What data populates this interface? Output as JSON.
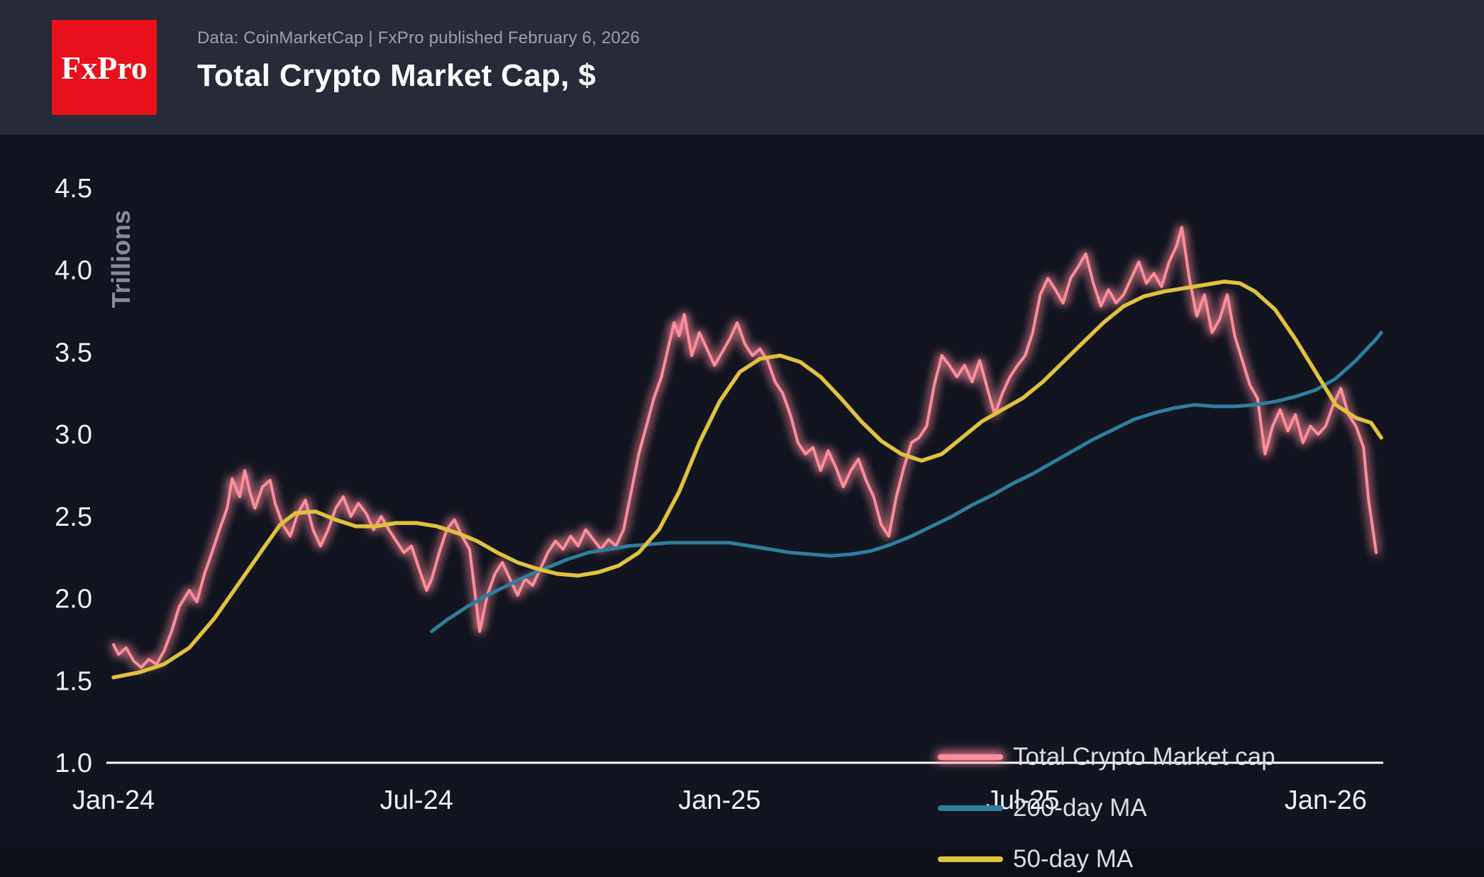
{
  "header": {
    "logo_text": "FxPro",
    "source_line": "Data: CoinMarketCap | FxPro published February 6, 2026",
    "title": "Total Crypto Market Cap, $"
  },
  "colors": {
    "header_bg": "#272b37",
    "chart_bg": "#121520",
    "logo_red": "#e8101c",
    "axis_line": "#ffffff",
    "axis_text": "#eef0f3",
    "muted_text": "#9aa1ae"
  },
  "chart_data": {
    "type": "line",
    "title": "Total Crypto Market Cap, $",
    "ylabel": "Trillions",
    "unit": "trillions USD",
    "ylim": [
      1.0,
      4.5
    ],
    "xlim_months_from_jan24": [
      0,
      25.1
    ],
    "grid": "off",
    "legend_position": "lower right",
    "y_ticks": [
      {
        "label": "1.0",
        "v": 1.0
      },
      {
        "label": "1.5",
        "v": 1.5
      },
      {
        "label": "2.0",
        "v": 2.0
      },
      {
        "label": "2.5",
        "v": 2.5
      },
      {
        "label": "3.0",
        "v": 3.0
      },
      {
        "label": "3.5",
        "v": 3.5
      },
      {
        "label": "4.0",
        "v": 4.0
      },
      {
        "label": "4.5",
        "v": 4.5
      }
    ],
    "x_ticks": [
      {
        "label": "Jan-24",
        "m": 0
      },
      {
        "label": "Jul-24",
        "m": 6
      },
      {
        "label": "Jan-25",
        "m": 12
      },
      {
        "label": "Jul-25",
        "m": 18
      },
      {
        "label": "Jan-26",
        "m": 24
      }
    ],
    "series": [
      {
        "id": "total-crypto-market-cap",
        "name": "Total Crypto Market cap",
        "color": "#ff8d9c",
        "width": 4,
        "glow": true,
        "points": [
          [
            0.0,
            1.72
          ],
          [
            0.1,
            1.66
          ],
          [
            0.25,
            1.7
          ],
          [
            0.4,
            1.62
          ],
          [
            0.55,
            1.58
          ],
          [
            0.7,
            1.63
          ],
          [
            0.85,
            1.6
          ],
          [
            1.0,
            1.68
          ],
          [
            1.15,
            1.8
          ],
          [
            1.3,
            1.95
          ],
          [
            1.5,
            2.05
          ],
          [
            1.65,
            1.98
          ],
          [
            1.8,
            2.15
          ],
          [
            1.95,
            2.28
          ],
          [
            2.1,
            2.42
          ],
          [
            2.25,
            2.55
          ],
          [
            2.35,
            2.73
          ],
          [
            2.5,
            2.62
          ],
          [
            2.6,
            2.78
          ],
          [
            2.7,
            2.65
          ],
          [
            2.8,
            2.55
          ],
          [
            2.95,
            2.68
          ],
          [
            3.1,
            2.72
          ],
          [
            3.2,
            2.58
          ],
          [
            3.35,
            2.45
          ],
          [
            3.5,
            2.38
          ],
          [
            3.65,
            2.52
          ],
          [
            3.8,
            2.6
          ],
          [
            3.95,
            2.42
          ],
          [
            4.1,
            2.32
          ],
          [
            4.25,
            2.42
          ],
          [
            4.4,
            2.55
          ],
          [
            4.55,
            2.62
          ],
          [
            4.7,
            2.5
          ],
          [
            4.85,
            2.58
          ],
          [
            5.0,
            2.52
          ],
          [
            5.15,
            2.42
          ],
          [
            5.3,
            2.5
          ],
          [
            5.45,
            2.42
          ],
          [
            5.6,
            2.35
          ],
          [
            5.75,
            2.28
          ],
          [
            5.9,
            2.32
          ],
          [
            6.05,
            2.18
          ],
          [
            6.2,
            2.05
          ],
          [
            6.3,
            2.12
          ],
          [
            6.45,
            2.28
          ],
          [
            6.6,
            2.42
          ],
          [
            6.75,
            2.48
          ],
          [
            6.9,
            2.38
          ],
          [
            7.05,
            2.3
          ],
          [
            7.15,
            2.05
          ],
          [
            7.25,
            1.8
          ],
          [
            7.4,
            2.02
          ],
          [
            7.55,
            2.15
          ],
          [
            7.7,
            2.22
          ],
          [
            7.85,
            2.12
          ],
          [
            8.0,
            2.02
          ],
          [
            8.15,
            2.12
          ],
          [
            8.3,
            2.08
          ],
          [
            8.45,
            2.18
          ],
          [
            8.6,
            2.28
          ],
          [
            8.75,
            2.35
          ],
          [
            8.9,
            2.3
          ],
          [
            9.05,
            2.38
          ],
          [
            9.2,
            2.32
          ],
          [
            9.35,
            2.42
          ],
          [
            9.5,
            2.36
          ],
          [
            9.65,
            2.3
          ],
          [
            9.8,
            2.36
          ],
          [
            9.95,
            2.32
          ],
          [
            10.1,
            2.42
          ],
          [
            10.25,
            2.65
          ],
          [
            10.4,
            2.88
          ],
          [
            10.55,
            3.05
          ],
          [
            10.7,
            3.22
          ],
          [
            10.85,
            3.35
          ],
          [
            11.0,
            3.55
          ],
          [
            11.1,
            3.68
          ],
          [
            11.2,
            3.6
          ],
          [
            11.3,
            3.73
          ],
          [
            11.45,
            3.48
          ],
          [
            11.6,
            3.62
          ],
          [
            11.75,
            3.52
          ],
          [
            11.9,
            3.42
          ],
          [
            12.05,
            3.5
          ],
          [
            12.2,
            3.58
          ],
          [
            12.35,
            3.68
          ],
          [
            12.5,
            3.55
          ],
          [
            12.65,
            3.48
          ],
          [
            12.8,
            3.52
          ],
          [
            12.95,
            3.45
          ],
          [
            13.1,
            3.32
          ],
          [
            13.25,
            3.25
          ],
          [
            13.4,
            3.12
          ],
          [
            13.55,
            2.95
          ],
          [
            13.7,
            2.88
          ],
          [
            13.85,
            2.92
          ],
          [
            14.0,
            2.78
          ],
          [
            14.15,
            2.9
          ],
          [
            14.3,
            2.8
          ],
          [
            14.45,
            2.68
          ],
          [
            14.6,
            2.78
          ],
          [
            14.75,
            2.85
          ],
          [
            14.9,
            2.72
          ],
          [
            15.05,
            2.62
          ],
          [
            15.2,
            2.45
          ],
          [
            15.35,
            2.38
          ],
          [
            15.5,
            2.62
          ],
          [
            15.65,
            2.8
          ],
          [
            15.8,
            2.95
          ],
          [
            15.95,
            2.98
          ],
          [
            16.1,
            3.05
          ],
          [
            16.25,
            3.3
          ],
          [
            16.4,
            3.48
          ],
          [
            16.55,
            3.42
          ],
          [
            16.7,
            3.35
          ],
          [
            16.85,
            3.42
          ],
          [
            17.0,
            3.32
          ],
          [
            17.15,
            3.45
          ],
          [
            17.3,
            3.28
          ],
          [
            17.45,
            3.12
          ],
          [
            17.6,
            3.25
          ],
          [
            17.75,
            3.35
          ],
          [
            17.9,
            3.42
          ],
          [
            18.05,
            3.48
          ],
          [
            18.2,
            3.62
          ],
          [
            18.35,
            3.85
          ],
          [
            18.5,
            3.95
          ],
          [
            18.65,
            3.88
          ],
          [
            18.8,
            3.8
          ],
          [
            18.95,
            3.95
          ],
          [
            19.1,
            4.02
          ],
          [
            19.25,
            4.1
          ],
          [
            19.4,
            3.92
          ],
          [
            19.55,
            3.78
          ],
          [
            19.7,
            3.88
          ],
          [
            19.85,
            3.8
          ],
          [
            20.0,
            3.85
          ],
          [
            20.15,
            3.95
          ],
          [
            20.3,
            4.05
          ],
          [
            20.45,
            3.92
          ],
          [
            20.6,
            3.98
          ],
          [
            20.75,
            3.9
          ],
          [
            20.9,
            4.05
          ],
          [
            21.05,
            4.15
          ],
          [
            21.15,
            4.26
          ],
          [
            21.3,
            3.95
          ],
          [
            21.45,
            3.72
          ],
          [
            21.6,
            3.85
          ],
          [
            21.75,
            3.62
          ],
          [
            21.9,
            3.7
          ],
          [
            22.05,
            3.85
          ],
          [
            22.2,
            3.6
          ],
          [
            22.35,
            3.45
          ],
          [
            22.5,
            3.3
          ],
          [
            22.65,
            3.22
          ],
          [
            22.8,
            2.88
          ],
          [
            22.95,
            3.05
          ],
          [
            23.1,
            3.15
          ],
          [
            23.25,
            3.02
          ],
          [
            23.4,
            3.12
          ],
          [
            23.55,
            2.95
          ],
          [
            23.7,
            3.05
          ],
          [
            23.85,
            3.0
          ],
          [
            24.0,
            3.05
          ],
          [
            24.15,
            3.18
          ],
          [
            24.3,
            3.28
          ],
          [
            24.45,
            3.12
          ],
          [
            24.6,
            3.05
          ],
          [
            24.75,
            2.92
          ],
          [
            24.85,
            2.6
          ],
          [
            25.0,
            2.28
          ]
        ]
      },
      {
        "id": "200-day-ma",
        "name": "200-day MA",
        "color": "#2e7e9d",
        "width": 5,
        "glow": false,
        "points": [
          [
            6.3,
            1.8
          ],
          [
            6.6,
            1.87
          ],
          [
            7.0,
            1.95
          ],
          [
            7.4,
            2.02
          ],
          [
            7.8,
            2.08
          ],
          [
            8.2,
            2.14
          ],
          [
            8.6,
            2.19
          ],
          [
            9.0,
            2.24
          ],
          [
            9.4,
            2.28
          ],
          [
            9.8,
            2.3
          ],
          [
            10.2,
            2.32
          ],
          [
            10.6,
            2.33
          ],
          [
            11.0,
            2.34
          ],
          [
            11.4,
            2.34
          ],
          [
            11.8,
            2.34
          ],
          [
            12.2,
            2.34
          ],
          [
            12.6,
            2.32
          ],
          [
            13.0,
            2.3
          ],
          [
            13.4,
            2.28
          ],
          [
            13.8,
            2.27
          ],
          [
            14.2,
            2.26
          ],
          [
            14.6,
            2.27
          ],
          [
            15.0,
            2.29
          ],
          [
            15.4,
            2.33
          ],
          [
            15.8,
            2.38
          ],
          [
            16.2,
            2.44
          ],
          [
            16.6,
            2.5
          ],
          [
            17.0,
            2.57
          ],
          [
            17.4,
            2.63
          ],
          [
            17.8,
            2.7
          ],
          [
            18.2,
            2.76
          ],
          [
            18.6,
            2.83
          ],
          [
            19.0,
            2.9
          ],
          [
            19.4,
            2.97
          ],
          [
            19.8,
            3.03
          ],
          [
            20.2,
            3.09
          ],
          [
            20.6,
            3.13
          ],
          [
            21.0,
            3.16
          ],
          [
            21.4,
            3.18
          ],
          [
            21.8,
            3.17
          ],
          [
            22.2,
            3.17
          ],
          [
            22.6,
            3.18
          ],
          [
            23.0,
            3.2
          ],
          [
            23.4,
            3.23
          ],
          [
            23.8,
            3.27
          ],
          [
            24.2,
            3.34
          ],
          [
            24.6,
            3.45
          ],
          [
            25.0,
            3.58
          ],
          [
            25.1,
            3.62
          ]
        ]
      },
      {
        "id": "50-day-ma",
        "name": "50-day MA",
        "color": "#dfc13e",
        "width": 5.5,
        "glow": false,
        "points": [
          [
            0.0,
            1.52
          ],
          [
            0.5,
            1.55
          ],
          [
            1.0,
            1.6
          ],
          [
            1.5,
            1.7
          ],
          [
            2.0,
            1.88
          ],
          [
            2.5,
            2.1
          ],
          [
            3.0,
            2.32
          ],
          [
            3.3,
            2.45
          ],
          [
            3.6,
            2.52
          ],
          [
            4.0,
            2.53
          ],
          [
            4.4,
            2.48
          ],
          [
            4.8,
            2.44
          ],
          [
            5.2,
            2.44
          ],
          [
            5.6,
            2.46
          ],
          [
            6.0,
            2.46
          ],
          [
            6.4,
            2.44
          ],
          [
            6.8,
            2.4
          ],
          [
            7.2,
            2.35
          ],
          [
            7.6,
            2.28
          ],
          [
            8.0,
            2.22
          ],
          [
            8.4,
            2.18
          ],
          [
            8.8,
            2.15
          ],
          [
            9.2,
            2.14
          ],
          [
            9.6,
            2.16
          ],
          [
            10.0,
            2.2
          ],
          [
            10.4,
            2.28
          ],
          [
            10.8,
            2.42
          ],
          [
            11.2,
            2.65
          ],
          [
            11.6,
            2.95
          ],
          [
            12.0,
            3.2
          ],
          [
            12.4,
            3.38
          ],
          [
            12.8,
            3.46
          ],
          [
            13.2,
            3.48
          ],
          [
            13.6,
            3.44
          ],
          [
            14.0,
            3.35
          ],
          [
            14.4,
            3.22
          ],
          [
            14.8,
            3.08
          ],
          [
            15.2,
            2.96
          ],
          [
            15.6,
            2.88
          ],
          [
            16.0,
            2.84
          ],
          [
            16.4,
            2.88
          ],
          [
            16.8,
            2.98
          ],
          [
            17.2,
            3.08
          ],
          [
            17.6,
            3.15
          ],
          [
            18.0,
            3.22
          ],
          [
            18.4,
            3.32
          ],
          [
            18.8,
            3.44
          ],
          [
            19.2,
            3.56
          ],
          [
            19.6,
            3.68
          ],
          [
            20.0,
            3.78
          ],
          [
            20.4,
            3.84
          ],
          [
            20.8,
            3.87
          ],
          [
            21.2,
            3.89
          ],
          [
            21.6,
            3.91
          ],
          [
            22.0,
            3.93
          ],
          [
            22.3,
            3.92
          ],
          [
            22.6,
            3.87
          ],
          [
            23.0,
            3.76
          ],
          [
            23.4,
            3.58
          ],
          [
            23.8,
            3.38
          ],
          [
            24.2,
            3.18
          ],
          [
            24.6,
            3.1
          ],
          [
            24.9,
            3.07
          ],
          [
            25.1,
            2.98
          ]
        ]
      }
    ]
  }
}
